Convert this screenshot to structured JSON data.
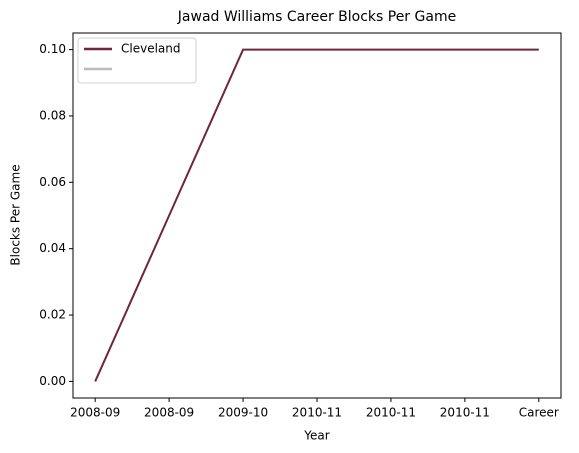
{
  "chart_data": {
    "type": "line",
    "title": "Jawad Williams Career Blocks Per Game",
    "xlabel": "Year",
    "ylabel": "Blocks Per Game",
    "categories": [
      "2008-09",
      "2008-09",
      "2009-10",
      "2010-11",
      "2010-11",
      "2010-11",
      "Career"
    ],
    "series": [
      {
        "name": "Cleveland",
        "color": "#6f263d",
        "values": [
          0.0,
          0.05,
          0.1,
          0.1,
          0.1,
          0.1,
          0.1
        ]
      },
      {
        "color": "#bbbbbb",
        "values": [
          null,
          null,
          null,
          null,
          null,
          null,
          null
        ]
      }
    ],
    "ylim": [
      -0.005,
      0.105
    ],
    "yticks": [
      {
        "value": 0,
        "label": "0.00"
      },
      {
        "value": 0.02,
        "label": "0.02"
      },
      {
        "value": 0.04,
        "label": "0.04"
      },
      {
        "value": 0.06,
        "label": "0.06"
      },
      {
        "value": 0.08,
        "label": "0.08"
      },
      {
        "value": 0.1,
        "label": "0.10"
      }
    ],
    "grid": false,
    "legend": "upper left"
  }
}
